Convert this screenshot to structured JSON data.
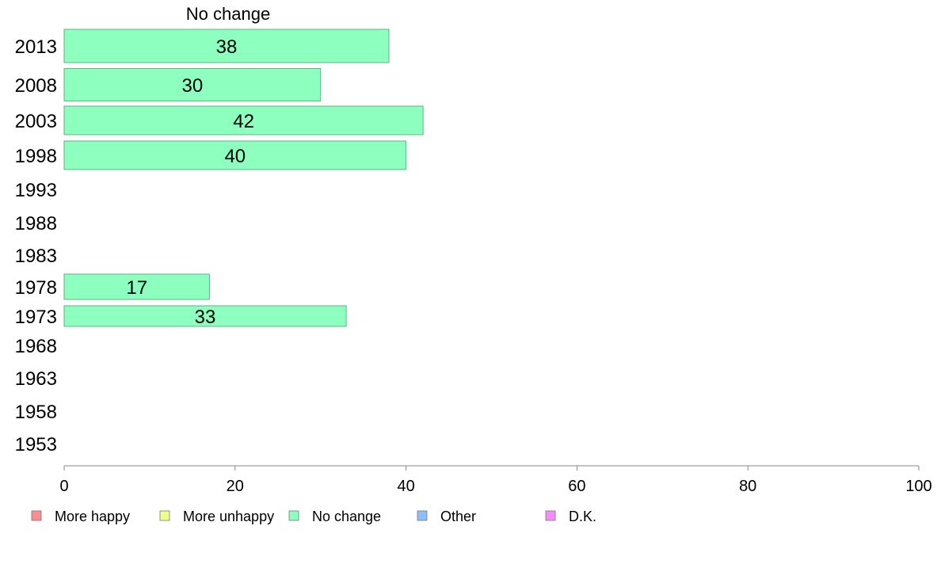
{
  "chart_data": {
    "type": "bar",
    "orientation": "horizontal",
    "title": "No change",
    "categories": [
      "2013",
      "2008",
      "2003",
      "1998",
      "1993",
      "1988",
      "1983",
      "1978",
      "1973",
      "1968",
      "1963",
      "1958",
      "1953"
    ],
    "series": [
      {
        "name": "No change",
        "values": [
          38,
          30,
          42,
          40,
          null,
          null,
          null,
          17,
          33,
          null,
          null,
          null,
          null
        ]
      }
    ],
    "xlim": [
      0,
      100
    ],
    "xticks": [
      0,
      20,
      40,
      60,
      80,
      100
    ],
    "grid": false,
    "legend_position": "bottom",
    "legend": [
      {
        "label": "More happy",
        "color": "#ff8c8c"
      },
      {
        "label": "More unhappy",
        "color": "#f0ff8c"
      },
      {
        "label": "No change",
        "color": "#8dffbe"
      },
      {
        "label": "Other",
        "color": "#8cbfff"
      },
      {
        "label": "D.K.",
        "color": "#f58cff"
      }
    ],
    "bar_color": "#8dffbe"
  }
}
